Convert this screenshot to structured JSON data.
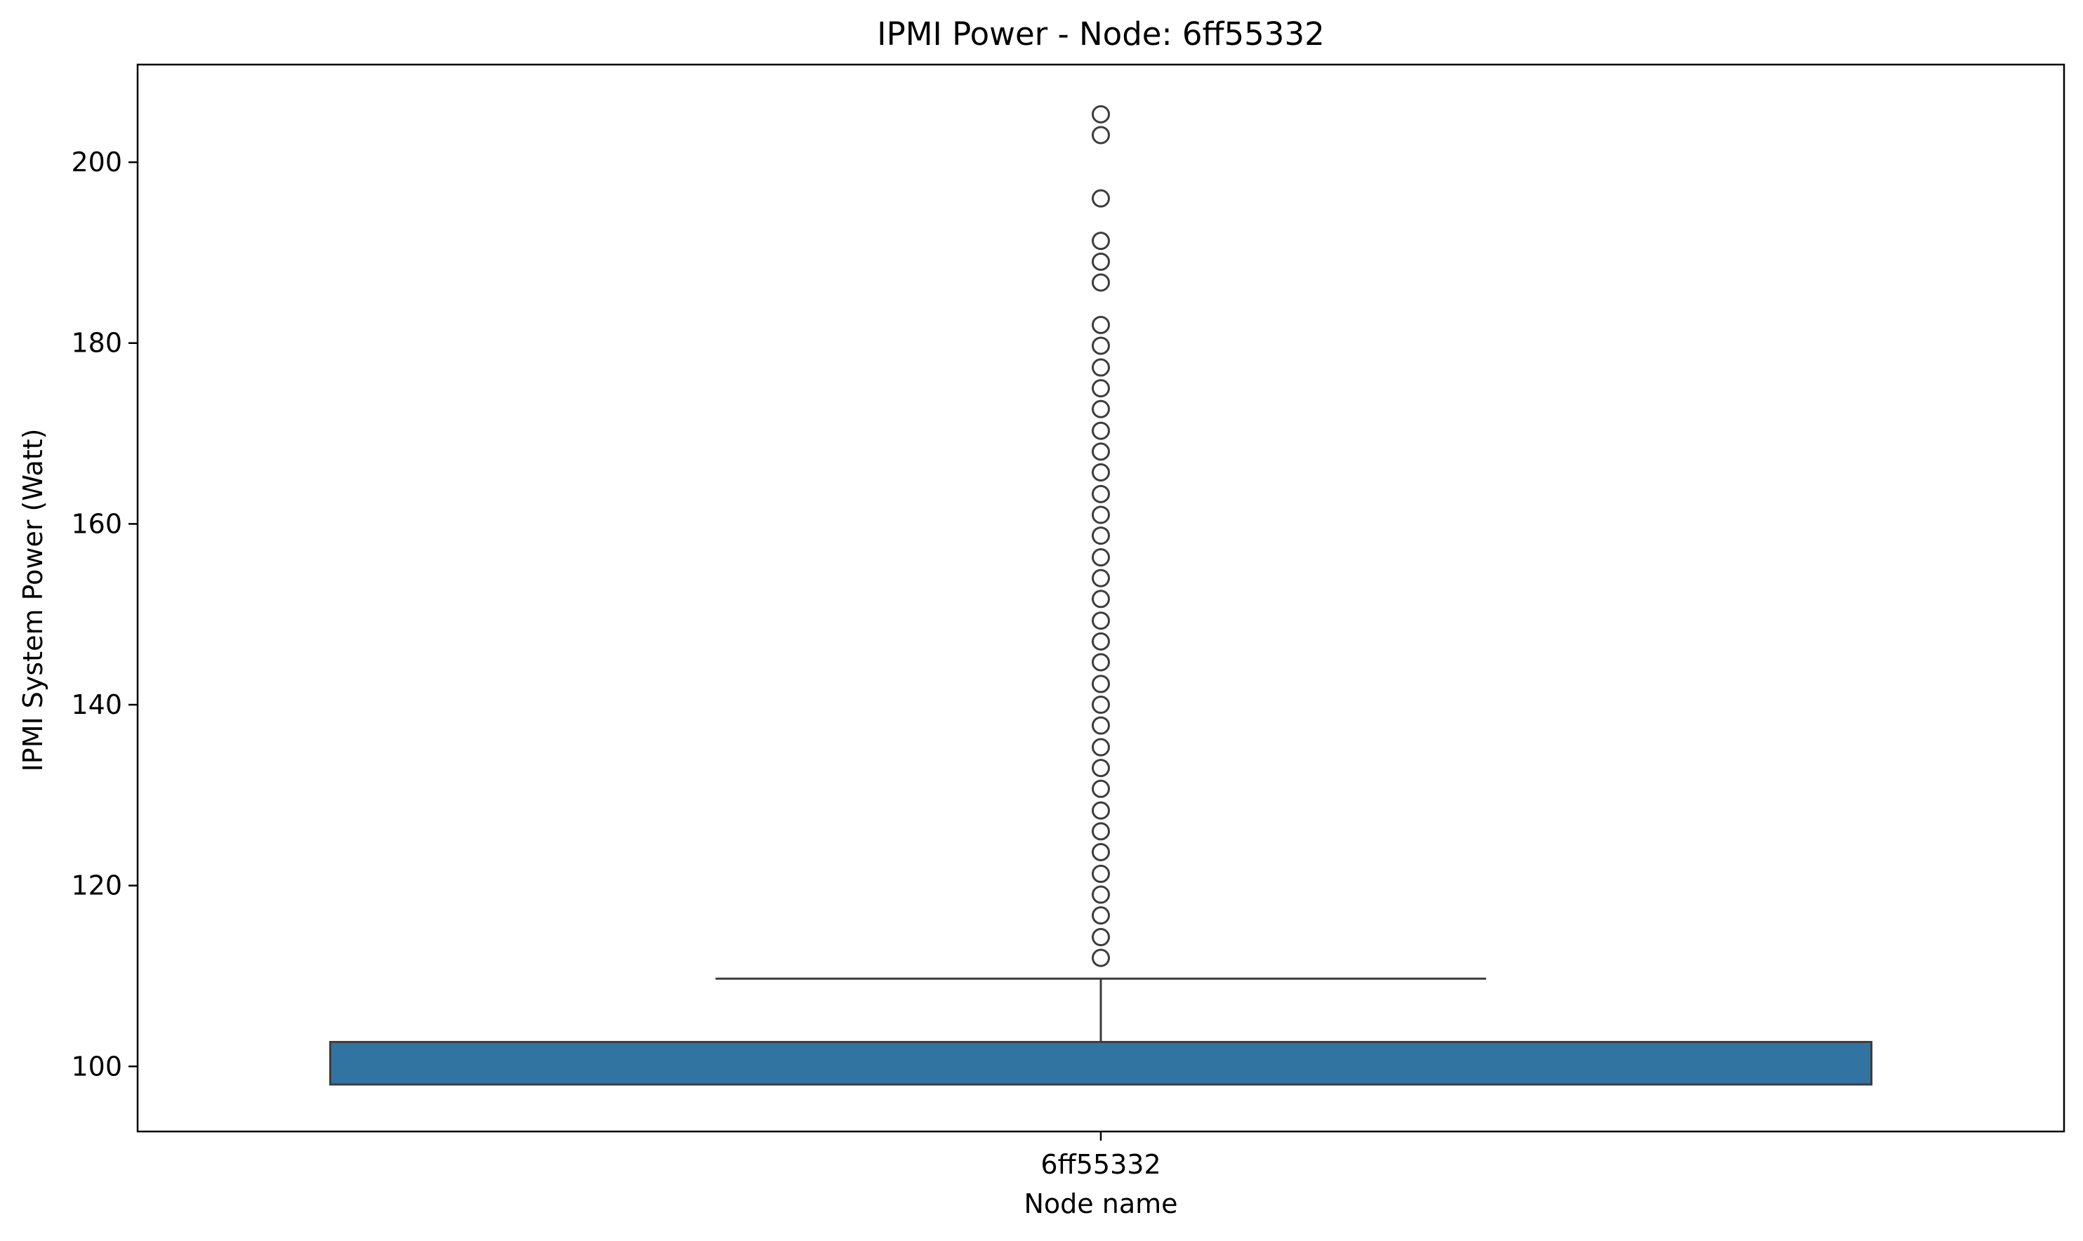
{
  "chart_data": {
    "type": "box",
    "title": "IPMI Power - Node: 6ff55332",
    "xlabel": "Node name",
    "ylabel": "IPMI System Power (Watt)",
    "categories": [
      "6ff55332"
    ],
    "ylim": [
      92.8,
      210.8
    ],
    "yticks": [
      100,
      120,
      140,
      160,
      180,
      200
    ],
    "grid": false,
    "legend": false,
    "box_color": "#3274a1",
    "edge_color": "#3d3d3d",
    "boxes": [
      {
        "category": "6ff55332",
        "q1": 98.0,
        "median": 98.0,
        "q3": 102.7,
        "whisker_low": 98.0,
        "whisker_high": 109.7,
        "outliers": [
          112.0,
          114.3,
          116.7,
          119.0,
          121.3,
          123.7,
          126.0,
          128.3,
          130.7,
          133.0,
          135.3,
          137.7,
          140.0,
          142.3,
          144.7,
          147.0,
          149.3,
          151.7,
          154.0,
          156.3,
          158.7,
          161.0,
          163.3,
          165.7,
          168.0,
          170.3,
          172.7,
          175.0,
          177.3,
          179.7,
          182.0,
          186.7,
          189.0,
          191.3,
          196.0,
          203.0,
          205.3
        ]
      }
    ]
  }
}
